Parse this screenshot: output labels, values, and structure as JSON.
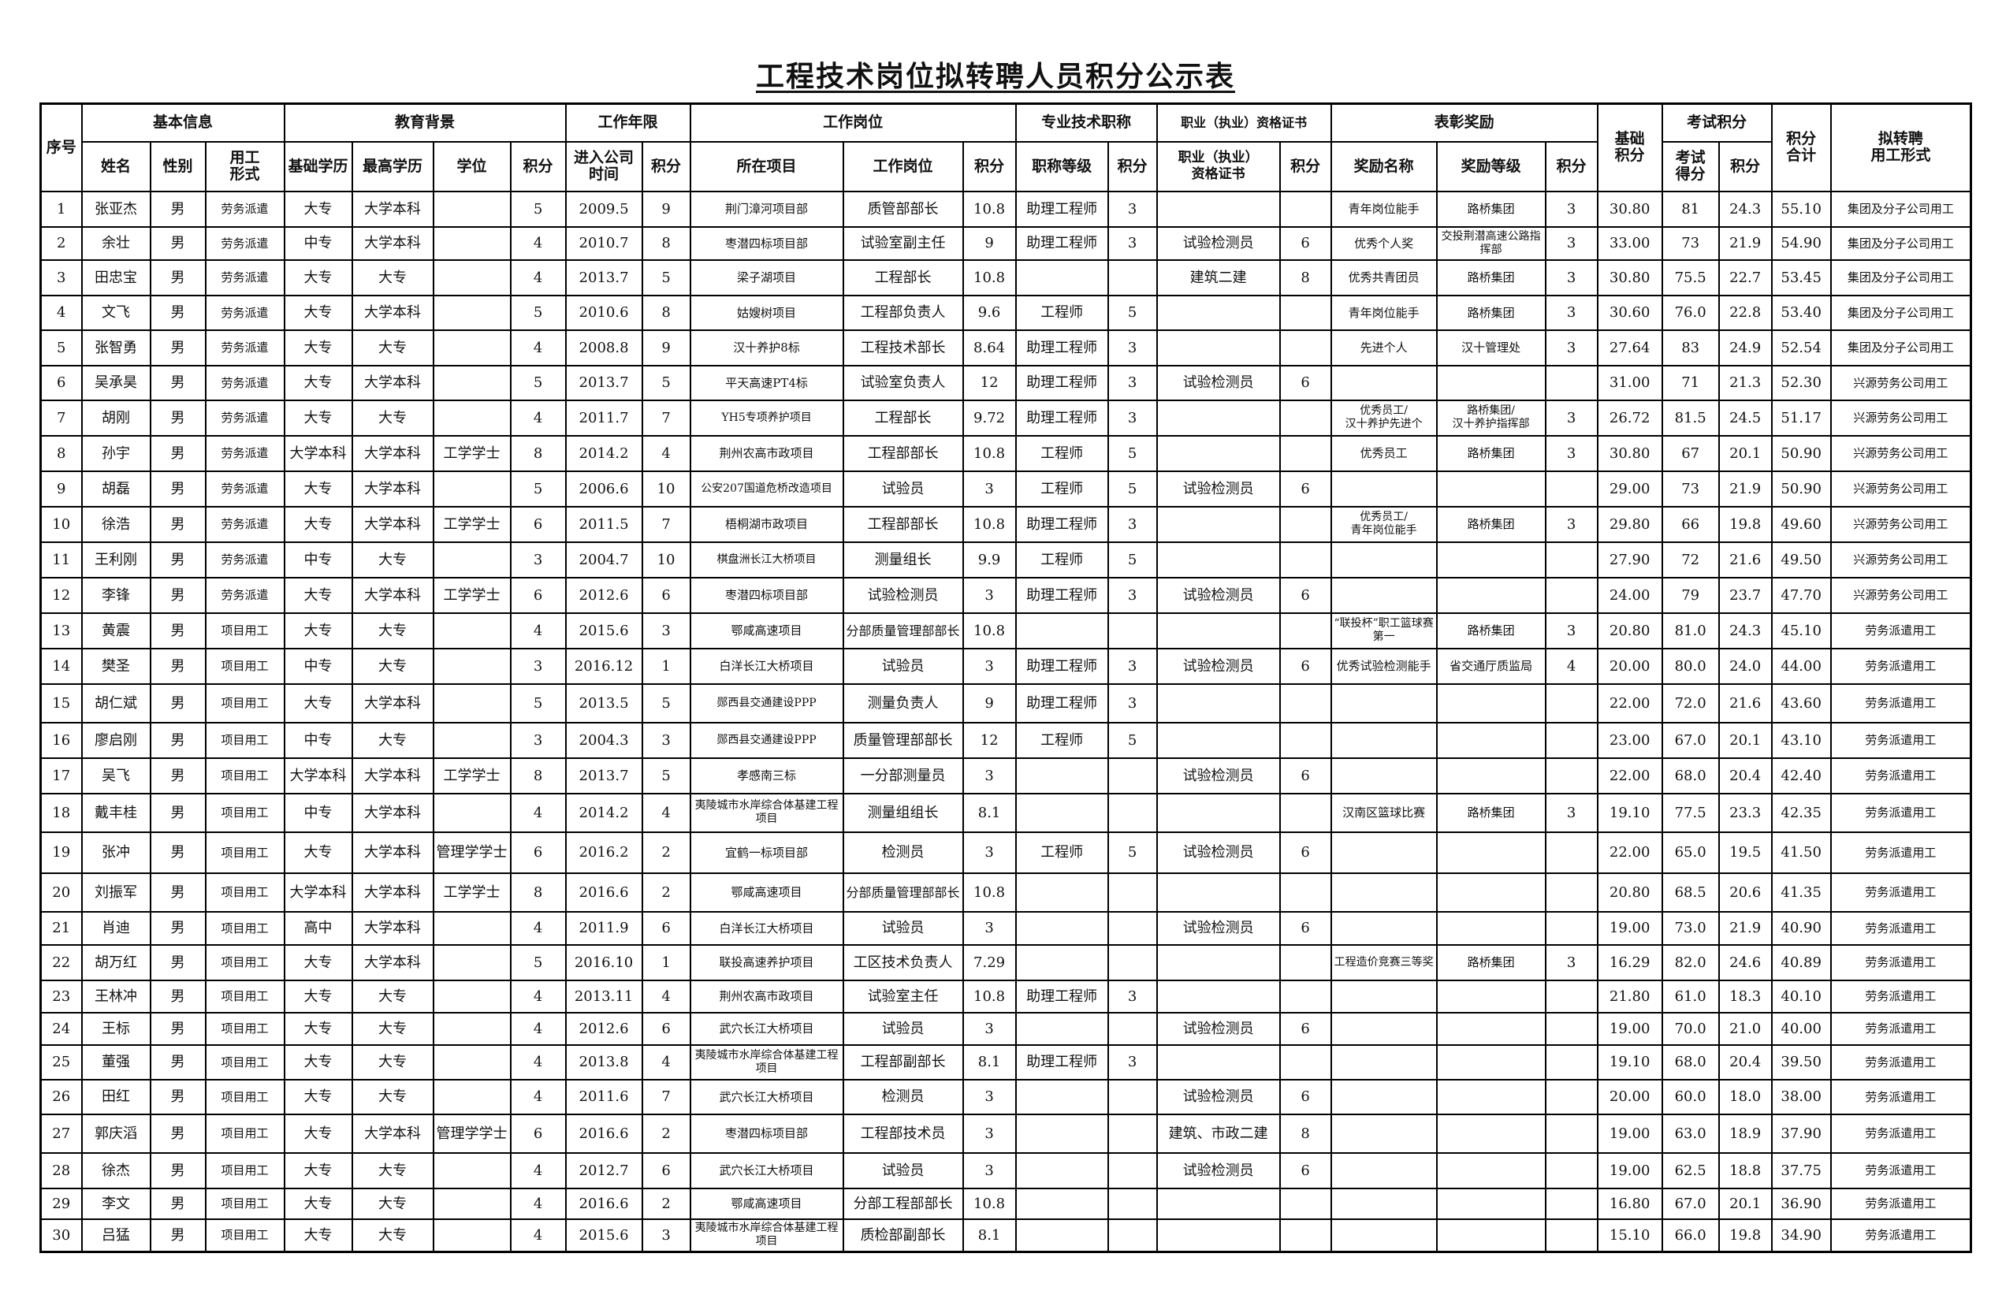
{
  "title": "工程技术岗位拟转聘人员积分公示表",
  "header": {
    "seq": "序号",
    "groups": [
      "基本信息",
      "教育背景",
      "工作年限",
      "工作岗位",
      "专业技术职称",
      "职业（执业）资格证书",
      "表彰奖励"
    ],
    "base_score": "基础\n积分",
    "exam_group": "考试积分",
    "total": "积分\n合计",
    "proposed": "拟转聘\n用工形式",
    "sub": [
      "姓名",
      "性别",
      "用工\n形式",
      "基础学历",
      "最高学历",
      "学位",
      "积分",
      "进入公司\n时间",
      "积分",
      "所在项目",
      "工作岗位",
      "积分",
      "职称等级",
      "积分",
      "职业（执业）\n资格证书",
      "积分",
      "奖励名称",
      "奖励等级",
      "积分"
    ],
    "exam_sub": [
      "考试\n得分",
      "积分"
    ]
  },
  "rows": [
    [
      "1",
      "张亚杰",
      "男",
      "劳务派遣",
      "大专",
      "大学本科",
      "",
      "5",
      "2009.5",
      "9",
      "荆门漳河项目部",
      "质管部部长",
      "10.8",
      "助理工程师",
      "3",
      "",
      "",
      "青年岗位能手",
      "路桥集团",
      "3",
      "30.80",
      "81",
      "24.3",
      "55.10",
      "集团及分子公司用工"
    ],
    [
      "2",
      "余壮",
      "男",
      "劳务派遣",
      "中专",
      "大学本科",
      "",
      "4",
      "2010.7",
      "8",
      "枣潜四标项目部",
      "试验室副主任",
      "9",
      "助理工程师",
      "3",
      "试验检测员",
      "6",
      "优秀个人奖",
      "交投荆潜高速公路指挥部",
      "3",
      "33.00",
      "73",
      "21.9",
      "54.90",
      "集团及分子公司用工"
    ],
    [
      "3",
      "田忠宝",
      "男",
      "劳务派遣",
      "大专",
      "大专",
      "",
      "4",
      "2013.7",
      "5",
      "梁子湖项目",
      "工程部长",
      "10.8",
      "",
      "",
      "建筑二建",
      "8",
      "优秀共青团员",
      "路桥集团",
      "3",
      "30.80",
      "75.5",
      "22.7",
      "53.45",
      "集团及分子公司用工"
    ],
    [
      "4",
      "文飞",
      "男",
      "劳务派遣",
      "大专",
      "大学本科",
      "",
      "5",
      "2010.6",
      "8",
      "姑嫂树项目",
      "工程部负责人",
      "9.6",
      "工程师",
      "5",
      "",
      "",
      "青年岗位能手",
      "路桥集团",
      "3",
      "30.60",
      "76.0",
      "22.8",
      "53.40",
      "集团及分子公司用工"
    ],
    [
      "5",
      "张智勇",
      "男",
      "劳务派遣",
      "大专",
      "大专",
      "",
      "4",
      "2008.8",
      "9",
      "汉十养护8标",
      "工程技术部长",
      "8.64",
      "助理工程师",
      "3",
      "",
      "",
      "先进个人",
      "汉十管理处",
      "3",
      "27.64",
      "83",
      "24.9",
      "52.54",
      "集团及分子公司用工"
    ],
    [
      "6",
      "吴承昊",
      "男",
      "劳务派遣",
      "大专",
      "大学本科",
      "",
      "5",
      "2013.7",
      "5",
      "平天高速PT4标",
      "试验室负责人",
      "12",
      "助理工程师",
      "3",
      "试验检测员",
      "6",
      "",
      "",
      "",
      "31.00",
      "71",
      "21.3",
      "52.30",
      "兴源劳务公司用工"
    ],
    [
      "7",
      "胡刚",
      "男",
      "劳务派遣",
      "大专",
      "大专",
      "",
      "4",
      "2011.7",
      "7",
      "YH5专项养护项目",
      "工程部长",
      "9.72",
      "助理工程师",
      "3",
      "",
      "",
      "优秀员工/\n汉十养护先进个",
      "路桥集团/\n汉十养护指挥部",
      "3",
      "26.72",
      "81.5",
      "24.5",
      "51.17",
      "兴源劳务公司用工"
    ],
    [
      "8",
      "孙宇",
      "男",
      "劳务派遣",
      "大学本科",
      "大学本科",
      "工学学士",
      "8",
      "2014.2",
      "4",
      "荆州农高市政项目",
      "工程部部长",
      "10.8",
      "工程师",
      "5",
      "",
      "",
      "优秀员工",
      "路桥集团",
      "3",
      "30.80",
      "67",
      "20.1",
      "50.90",
      "兴源劳务公司用工"
    ],
    [
      "9",
      "胡磊",
      "男",
      "劳务派遣",
      "大专",
      "大学本科",
      "",
      "5",
      "2006.6",
      "10",
      "公安207国道危桥改造项目",
      "试验员",
      "3",
      "工程师",
      "5",
      "试验检测员",
      "6",
      "",
      "",
      "",
      "29.00",
      "73",
      "21.9",
      "50.90",
      "兴源劳务公司用工"
    ],
    [
      "10",
      "徐浩",
      "男",
      "劳务派遣",
      "大专",
      "大学本科",
      "工学学士",
      "6",
      "2011.5",
      "7",
      "梧桐湖市政项目",
      "工程部部长",
      "10.8",
      "助理工程师",
      "3",
      "",
      "",
      "优秀员工/\n青年岗位能手",
      "路桥集团",
      "3",
      "29.80",
      "66",
      "19.8",
      "49.60",
      "兴源劳务公司用工"
    ],
    [
      "11",
      "王利刚",
      "男",
      "劳务派遣",
      "中专",
      "大专",
      "",
      "3",
      "2004.7",
      "10",
      "棋盘洲长江大桥项目",
      "测量组长",
      "9.9",
      "工程师",
      "5",
      "",
      "",
      "",
      "",
      "",
      "27.90",
      "72",
      "21.6",
      "49.50",
      "兴源劳务公司用工"
    ],
    [
      "12",
      "李锋",
      "男",
      "劳务派遣",
      "大专",
      "大学本科",
      "工学学士",
      "6",
      "2012.6",
      "6",
      "枣潜四标项目部",
      "试验检测员",
      "3",
      "助理工程师",
      "3",
      "试验检测员",
      "6",
      "",
      "",
      "",
      "24.00",
      "79",
      "23.7",
      "47.70",
      "兴源劳务公司用工"
    ],
    [
      "13",
      "黄震",
      "男",
      "项目用工",
      "大专",
      "大专",
      "",
      "4",
      "2015.6",
      "3",
      "鄂咸高速项目",
      "分部质量管理部部长",
      "10.8",
      "",
      "",
      "",
      "",
      "“联投杯”职工篮球赛第一",
      "路桥集团",
      "3",
      "20.80",
      "81.0",
      "24.3",
      "45.10",
      "劳务派遣用工"
    ],
    [
      "14",
      "樊圣",
      "男",
      "项目用工",
      "中专",
      "大专",
      "",
      "3",
      "2016.12",
      "1",
      "白洋长江大桥项目",
      "试验员",
      "3",
      "助理工程师",
      "3",
      "试验检测员",
      "6",
      "优秀试验检测能手",
      "省交通厅质监局",
      "4",
      "20.00",
      "80.0",
      "24.0",
      "44.00",
      "劳务派遣用工"
    ],
    [
      "15",
      "胡仁斌",
      "男",
      "项目用工",
      "大专",
      "大学本科",
      "",
      "5",
      "2013.5",
      "5",
      "郧西县交通建设PPP",
      "测量负责人",
      "9",
      "助理工程师",
      "3",
      "",
      "",
      "",
      "",
      "",
      "22.00",
      "72.0",
      "21.6",
      "43.60",
      "劳务派遣用工"
    ],
    [
      "16",
      "廖启刚",
      "男",
      "项目用工",
      "中专",
      "大专",
      "",
      "3",
      "2004.3",
      "3",
      "郧西县交通建设PPP",
      "质量管理部部长",
      "12",
      "工程师",
      "5",
      "",
      "",
      "",
      "",
      "",
      "23.00",
      "67.0",
      "20.1",
      "43.10",
      "劳务派遣用工"
    ],
    [
      "17",
      "吴飞",
      "男",
      "项目用工",
      "大学本科",
      "大学本科",
      "工学学士",
      "8",
      "2013.7",
      "5",
      "孝感南三标",
      "一分部测量员",
      "3",
      "",
      "",
      "试验检测员",
      "6",
      "",
      "",
      "",
      "22.00",
      "68.0",
      "20.4",
      "42.40",
      "劳务派遣用工"
    ],
    [
      "18",
      "戴丰桂",
      "男",
      "项目用工",
      "中专",
      "大学本科",
      "",
      "4",
      "2014.2",
      "4",
      "夷陵城市水岸综合体基建工程项目",
      "测量组组长",
      "8.1",
      "",
      "",
      "",
      "",
      "汉南区篮球比赛",
      "路桥集团",
      "3",
      "19.10",
      "77.5",
      "23.3",
      "42.35",
      "劳务派遣用工"
    ],
    [
      "19",
      "张冲",
      "男",
      "项目用工",
      "大专",
      "大学本科",
      "管理学学士",
      "6",
      "2016.2",
      "2",
      "宜鹤一标项目部",
      "检测员",
      "3",
      "工程师",
      "5",
      "试验检测员",
      "6",
      "",
      "",
      "",
      "22.00",
      "65.0",
      "19.5",
      "41.50",
      "劳务派遣用工"
    ],
    [
      "20",
      "刘振军",
      "男",
      "项目用工",
      "大学本科",
      "大学本科",
      "工学学士",
      "8",
      "2016.6",
      "2",
      "鄂咸高速项目",
      "分部质量管理部部长",
      "10.8",
      "",
      "",
      "",
      "",
      "",
      "",
      "",
      "20.80",
      "68.5",
      "20.6",
      "41.35",
      "劳务派遣用工"
    ],
    [
      "21",
      "肖迪",
      "男",
      "项目用工",
      "高中",
      "大学本科",
      "",
      "4",
      "2011.9",
      "6",
      "白洋长江大桥项目",
      "试验员",
      "3",
      "",
      "",
      "试验检测员",
      "6",
      "",
      "",
      "",
      "19.00",
      "73.0",
      "21.9",
      "40.90",
      "劳务派遣用工"
    ],
    [
      "22",
      "胡万红",
      "男",
      "项目用工",
      "大专",
      "大学本科",
      "",
      "5",
      "2016.10",
      "1",
      "联投高速养护项目",
      "工区技术负责人",
      "7.29",
      "",
      "",
      "",
      "",
      "工程造价竞赛三等奖",
      "路桥集团",
      "3",
      "16.29",
      "82.0",
      "24.6",
      "40.89",
      "劳务派遣用工"
    ],
    [
      "23",
      "王林冲",
      "男",
      "项目用工",
      "大专",
      "大专",
      "",
      "4",
      "2013.11",
      "4",
      "荆州农高市政项目",
      "试验室主任",
      "10.8",
      "助理工程师",
      "3",
      "",
      "",
      "",
      "",
      "",
      "21.80",
      "61.0",
      "18.3",
      "40.10",
      "劳务派遣用工"
    ],
    [
      "24",
      "王标",
      "男",
      "项目用工",
      "大专",
      "大专",
      "",
      "4",
      "2012.6",
      "6",
      "武穴长江大桥项目",
      "试验员",
      "3",
      "",
      "",
      "试验检测员",
      "6",
      "",
      "",
      "",
      "19.00",
      "70.0",
      "21.0",
      "40.00",
      "劳务派遣用工"
    ],
    [
      "25",
      "董强",
      "男",
      "项目用工",
      "大专",
      "大专",
      "",
      "4",
      "2013.8",
      "4",
      "夷陵城市水岸综合体基建工程项目",
      "工程部副部长",
      "8.1",
      "助理工程师",
      "3",
      "",
      "",
      "",
      "",
      "",
      "19.10",
      "68.0",
      "20.4",
      "39.50",
      "劳务派遣用工"
    ],
    [
      "26",
      "田红",
      "男",
      "项目用工",
      "大专",
      "大专",
      "",
      "4",
      "2011.6",
      "7",
      "武穴长江大桥项目",
      "检测员",
      "3",
      "",
      "",
      "试验检测员",
      "6",
      "",
      "",
      "",
      "20.00",
      "60.0",
      "18.0",
      "38.00",
      "劳务派遣用工"
    ],
    [
      "27",
      "郭庆滔",
      "男",
      "项目用工",
      "大专",
      "大学本科",
      "管理学学士",
      "6",
      "2016.6",
      "2",
      "枣潜四标项目部",
      "工程部技术员",
      "3",
      "",
      "",
      "建筑、市政二建",
      "8",
      "",
      "",
      "",
      "19.00",
      "63.0",
      "18.9",
      "37.90",
      "劳务派遣用工"
    ],
    [
      "28",
      "徐杰",
      "男",
      "项目用工",
      "大专",
      "大专",
      "",
      "4",
      "2012.7",
      "6",
      "武穴长江大桥项目",
      "试验员",
      "3",
      "",
      "",
      "试验检测员",
      "6",
      "",
      "",
      "",
      "19.00",
      "62.5",
      "18.8",
      "37.75",
      "劳务派遣用工"
    ],
    [
      "29",
      "李文",
      "男",
      "项目用工",
      "大专",
      "大专",
      "",
      "4",
      "2016.6",
      "2",
      "鄂咸高速项目",
      "分部工程部部长",
      "10.8",
      "",
      "",
      "",
      "",
      "",
      "",
      "",
      "16.80",
      "67.0",
      "20.1",
      "36.90",
      "劳务派遣用工"
    ],
    [
      "30",
      "吕猛",
      "男",
      "项目用工",
      "大专",
      "大专",
      "",
      "4",
      "2015.6",
      "3",
      "夷陵城市水岸综合体基建工程项目",
      "质检部副部长",
      "8.1",
      "",
      "",
      "",
      "",
      "",
      "",
      "",
      "15.10",
      "66.0",
      "19.8",
      "34.90",
      "劳务派遣用工"
    ]
  ]
}
